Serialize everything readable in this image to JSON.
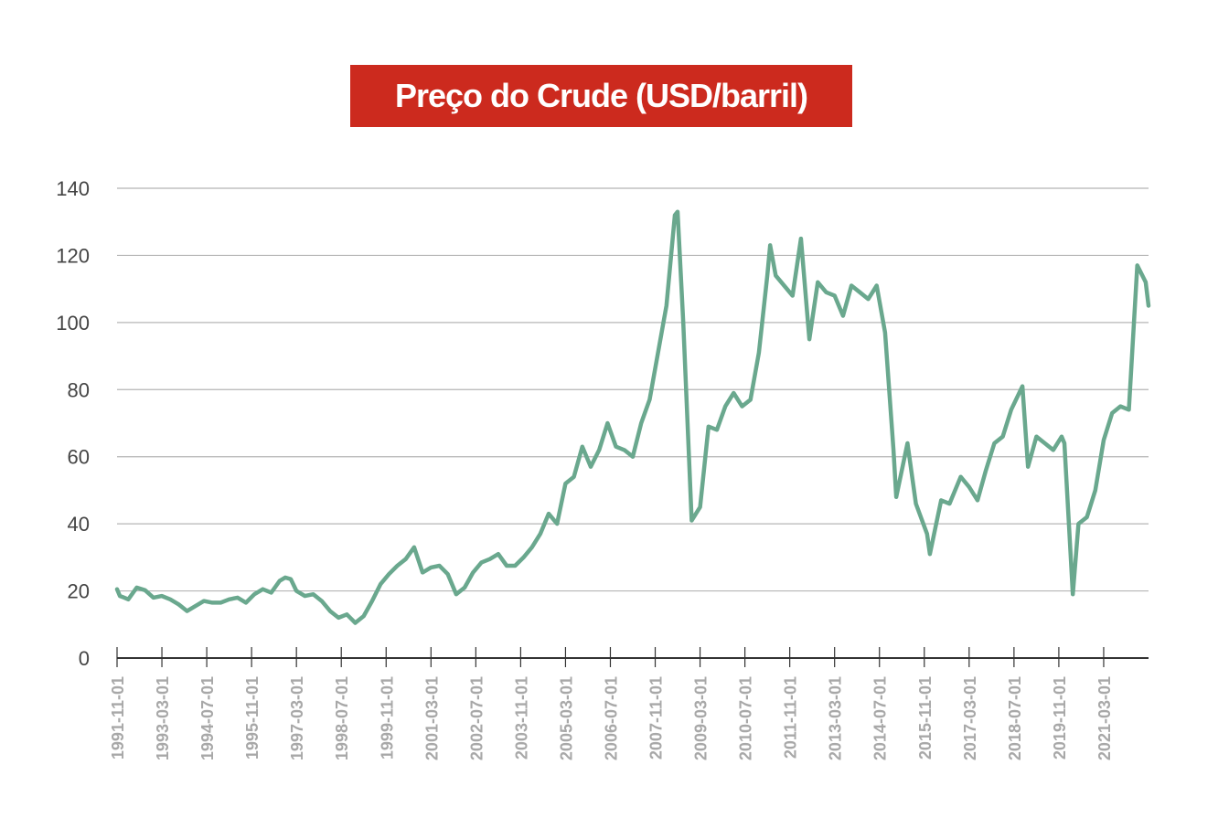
{
  "chart_data": {
    "type": "line",
    "title": "Preço do Crude (USD/barril)",
    "xlabel": "",
    "ylabel": "",
    "ylim": [
      0,
      140
    ],
    "yticks": [
      0,
      20,
      40,
      60,
      80,
      100,
      120,
      140
    ],
    "xticks": [
      "1991-11-01",
      "1993-03-01",
      "1994-07-01",
      "1995-11-01",
      "1997-03-01",
      "1998-07-01",
      "1999-11-01",
      "2001-03-01",
      "2002-07-01",
      "2003-11-01",
      "2005-03-01",
      "2006-07-01",
      "2007-11-01",
      "2009-03-01",
      "2010-07-01",
      "2011-11-01",
      "2013-03-01",
      "2014-07-01",
      "2015-11-01",
      "2017-03-01",
      "2018-07-01",
      "2019-11-01",
      "2021-03-01"
    ],
    "xlim": [
      "1991-11-01",
      "2022-07-01"
    ],
    "grid": true,
    "colors": {
      "line": "#6aa88e",
      "title_bg": "#cc2a1e",
      "grid": "#b5b5b5",
      "axis": "#333333"
    },
    "series": [
      {
        "x": [
          "1991-11-01",
          "1991-12-01",
          "1992-01-01",
          "1992-03-01",
          "1992-06-01",
          "1992-09-01",
          "1992-12-01",
          "1993-03-01",
          "1993-06-01",
          "1993-09-01",
          "1993-12-01",
          "1994-03-01",
          "1994-06-01",
          "1994-09-01",
          "1994-12-01",
          "1995-03-01",
          "1995-06-01",
          "1995-09-01",
          "1995-12-01",
          "1996-03-01",
          "1996-06-01",
          "1996-09-01",
          "1996-11-01",
          "1997-01-01",
          "1997-03-01",
          "1997-06-01",
          "1997-09-01",
          "1997-12-01",
          "1998-03-01",
          "1998-06-01",
          "1998-09-01",
          "1998-12-01",
          "1999-03-01",
          "1999-06-01",
          "1999-09-01",
          "1999-12-01",
          "2000-03-01",
          "2000-06-01",
          "2000-09-01",
          "2000-12-01",
          "2001-03-01",
          "2001-06-01",
          "2001-09-01",
          "2001-12-01",
          "2002-03-01",
          "2002-06-01",
          "2002-09-01",
          "2002-12-01",
          "2003-03-01",
          "2003-06-01",
          "2003-09-01",
          "2003-12-01",
          "2004-03-01",
          "2004-06-01",
          "2004-09-01",
          "2004-12-01",
          "2005-03-01",
          "2005-06-01",
          "2005-09-01",
          "2005-12-01",
          "2006-03-01",
          "2006-06-01",
          "2006-09-01",
          "2006-12-01",
          "2007-03-01",
          "2007-06-01",
          "2007-09-01",
          "2007-12-01",
          "2008-03-01",
          "2008-06-01",
          "2008-07-01",
          "2008-09-01",
          "2008-12-01",
          "2009-03-01",
          "2009-06-01",
          "2009-09-01",
          "2009-12-01",
          "2010-03-01",
          "2010-06-01",
          "2010-09-01",
          "2010-12-01",
          "2011-03-01",
          "2011-04-01",
          "2011-06-01",
          "2011-09-01",
          "2011-12-01",
          "2012-03-01",
          "2012-06-01",
          "2012-09-01",
          "2012-12-01",
          "2013-03-01",
          "2013-06-01",
          "2013-09-01",
          "2013-12-01",
          "2014-03-01",
          "2014-06-01",
          "2014-09-01",
          "2014-12-01",
          "2015-01-01",
          "2015-05-01",
          "2015-08-01",
          "2015-12-01",
          "2016-01-01",
          "2016-05-01",
          "2016-08-01",
          "2016-12-01",
          "2017-03-01",
          "2017-06-01",
          "2017-09-01",
          "2017-12-01",
          "2018-03-01",
          "2018-06-01",
          "2018-10-01",
          "2018-12-01",
          "2019-03-01",
          "2019-06-01",
          "2019-09-01",
          "2019-12-01",
          "2020-01-01",
          "2020-04-01",
          "2020-06-01",
          "2020-09-01",
          "2020-12-01",
          "2021-03-01",
          "2021-06-01",
          "2021-09-01",
          "2021-12-01",
          "2022-03-01",
          "2022-06-01",
          "2022-07-01"
        ],
        "y": [
          20.5,
          18.5,
          18.2,
          17.5,
          21.0,
          20.2,
          18.0,
          18.5,
          17.5,
          16.0,
          14.0,
          15.5,
          17.0,
          16.5,
          16.5,
          17.5,
          18.0,
          16.5,
          19.0,
          20.5,
          19.5,
          23.0,
          24.0,
          23.5,
          20.0,
          18.5,
          19.0,
          17.0,
          14.0,
          12.0,
          13.0,
          10.5,
          12.5,
          17.0,
          22.0,
          25.0,
          27.5,
          29.5,
          33.0,
          25.5,
          27.0,
          27.5,
          25.0,
          19.0,
          21.0,
          25.5,
          28.5,
          29.5,
          31.0,
          27.5,
          27.5,
          30.0,
          33.0,
          37.0,
          43.0,
          40.0,
          52.0,
          54.0,
          63.0,
          57.0,
          62.0,
          70.0,
          63.0,
          62.0,
          60.0,
          70.0,
          77.0,
          91.0,
          105.0,
          132.0,
          133.0,
          100.0,
          41.0,
          45.0,
          69.0,
          68.0,
          75.0,
          79.0,
          75.0,
          77.0,
          91.0,
          114.0,
          123.0,
          114.0,
          111.0,
          108.0,
          125.0,
          95.0,
          112.0,
          109.0,
          108.0,
          102.0,
          111.0,
          109.0,
          107.0,
          111.0,
          97.0,
          62.0,
          48.0,
          64.0,
          46.0,
          37.0,
          31.0,
          47.0,
          46.0,
          54.0,
          51.0,
          47.0,
          56.0,
          64.0,
          66.0,
          74.0,
          81.0,
          57.0,
          66.0,
          64.0,
          62.0,
          66.0,
          64.0,
          19.0,
          40.0,
          42.0,
          50.0,
          65.0,
          73.0,
          75.0,
          74.0,
          117.0,
          112.0,
          105.0
        ]
      }
    ]
  }
}
